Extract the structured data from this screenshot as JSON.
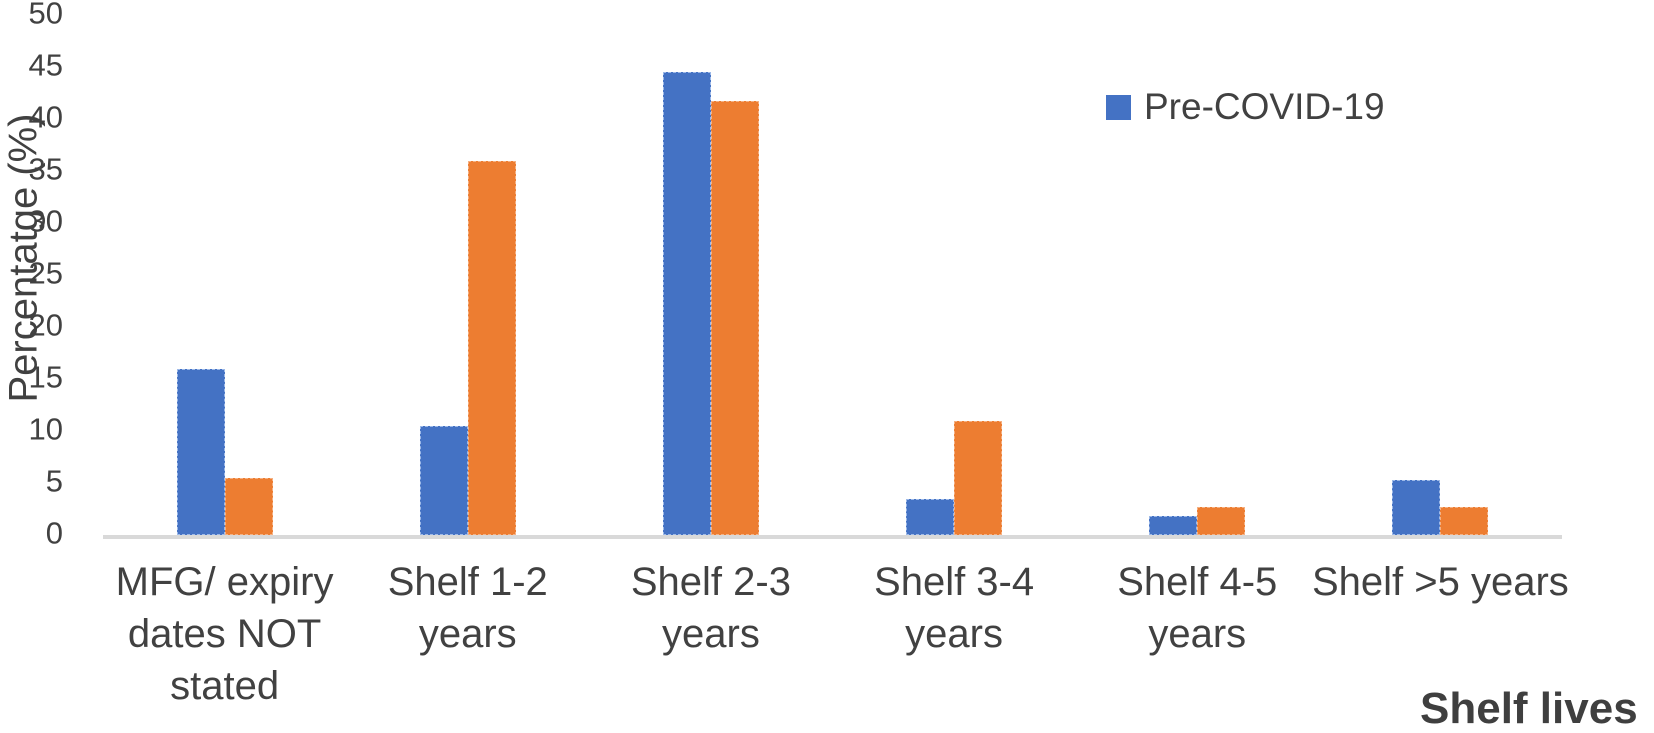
{
  "chart_data": {
    "type": "bar",
    "title": "",
    "xlabel": "Shelf lives",
    "ylabel": "Percentatge (%)",
    "categories": [
      "MFG/ expiry dates NOT stated",
      "Shelf 1-2 years",
      "Shelf 2-3 years",
      "Shelf 3-4 years",
      "Shelf 4-5 years",
      "Shelf >5 years"
    ],
    "category_lines": [
      [
        "MFG/ expiry",
        "dates NOT",
        "stated"
      ],
      [
        "Shelf 1-2",
        "years"
      ],
      [
        "Shelf 2-3",
        "years"
      ],
      [
        "Shelf 3-4",
        "years"
      ],
      [
        "Shelf 4-5",
        "years"
      ],
      [
        "Shelf >5 years"
      ]
    ],
    "series": [
      {
        "name": "Pre-COVID-19",
        "color": "#4472C4",
        "values": [
          16,
          10.5,
          44.5,
          3.5,
          1.8,
          5.3
        ]
      },
      {
        "name": "",
        "color": "#ED7D31",
        "values": [
          5.5,
          36,
          41.7,
          11,
          2.7,
          2.7
        ]
      }
    ],
    "ylim": [
      0,
      50
    ],
    "yticks": [
      0,
      5,
      10,
      15,
      20,
      25,
      30,
      35,
      40,
      45,
      50
    ],
    "grid": false,
    "legend_position": "top-right",
    "legend_entries": [
      "Pre-COVID-19"
    ]
  },
  "colors": {
    "series1": "#4472C4",
    "series2": "#ED7D31",
    "axis_line": "#D9D9D9",
    "text": "#414141"
  }
}
